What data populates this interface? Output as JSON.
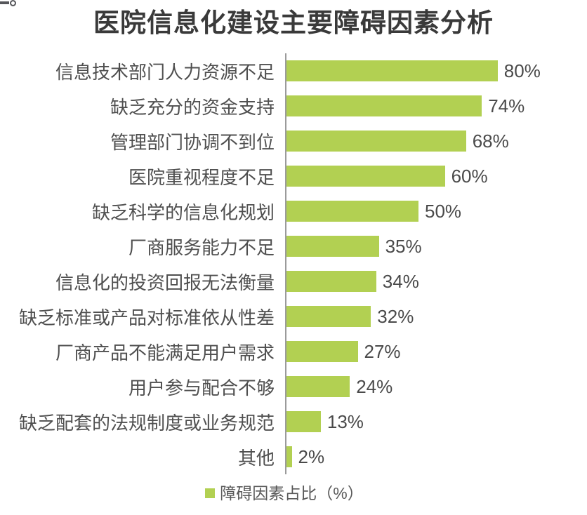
{
  "corner_fragment": "。",
  "legend": {
    "label": "障碍因素占比（%）"
  },
  "chart_data": {
    "type": "bar",
    "orientation": "horizontal",
    "title": "医院信息化建设主要障碍因素分析",
    "categories": [
      "信息技术部门人力资源不足",
      "缺乏充分的资金支持",
      "管理部门协调不到位",
      "医院重视程度不足",
      "缺乏科学的信息化规划",
      "厂商服务能力不足",
      "信息化的投资回报无法衡量",
      "缺乏标准或产品对标准依从性差",
      "厂商产品不能满足用户需求",
      "用户参与配合不够",
      "缺乏配套的法规制度或业务规范",
      "其他"
    ],
    "values": [
      80,
      74,
      68,
      60,
      50,
      35,
      34,
      32,
      27,
      24,
      13,
      2
    ],
    "value_suffix": "%",
    "xlim": [
      0,
      100
    ],
    "grid": false,
    "legend_entries": [
      "障碍因素占比（%）"
    ],
    "legend_position": "bottom-center",
    "bar_color": "#b2d052",
    "axis_color": "#9b9b9b",
    "title_color": "#3a3a3a",
    "label_color": "#4f4f4f"
  }
}
